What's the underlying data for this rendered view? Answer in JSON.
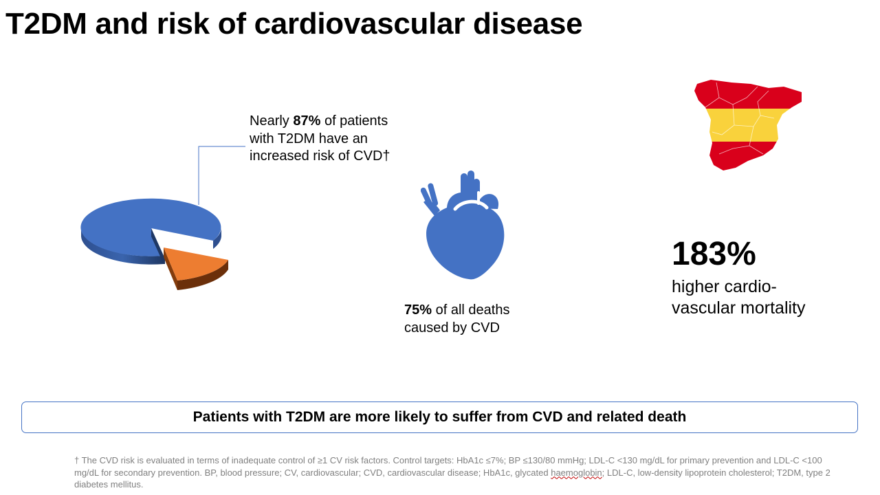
{
  "title": "T2DM and risk of cardiovascular disease",
  "stat_pie": {
    "prefix": "Nearly ",
    "value": "87%",
    "suffix": " of patients with T2DM have an increased risk of CVD†",
    "pie_fraction": 0.87,
    "colors": {
      "major": "#4472c4",
      "minor": "#ed7d31"
    }
  },
  "stat_heart": {
    "value": "75%",
    "suffix": " of all deaths caused by CVD",
    "icon": "heart-icon",
    "color": "#4472c4"
  },
  "stat_spain": {
    "value": "183%",
    "text_line1": "higher cardio-",
    "text_line2": "vascular mortality",
    "icon": "spain-map-icon",
    "colors": {
      "red": "#d9001b",
      "yellow": "#f9d23c"
    }
  },
  "callout": "Patients with T2DM are more likely to suffer from CVD and related death",
  "footnote": {
    "before": "† The CVD risk is evaluated in terms of inadequate control of ≥1 CV risk factors. Control targets: HbA1c ≤7%; BP ≤130/80 mmHg; LDL-C <130 mg/dL for primary prevention and LDL-C <100 mg/dL for secondary prevention. BP, blood pressure; CV, cardiovascular; CVD, cardiovascular disease; HbA1c, glycated ",
    "flagged_word": "haemoglobin",
    "after": "; LDL-C, low-density lipoprotein cholesterol; T2DM, type 2 diabetes mellitus."
  }
}
